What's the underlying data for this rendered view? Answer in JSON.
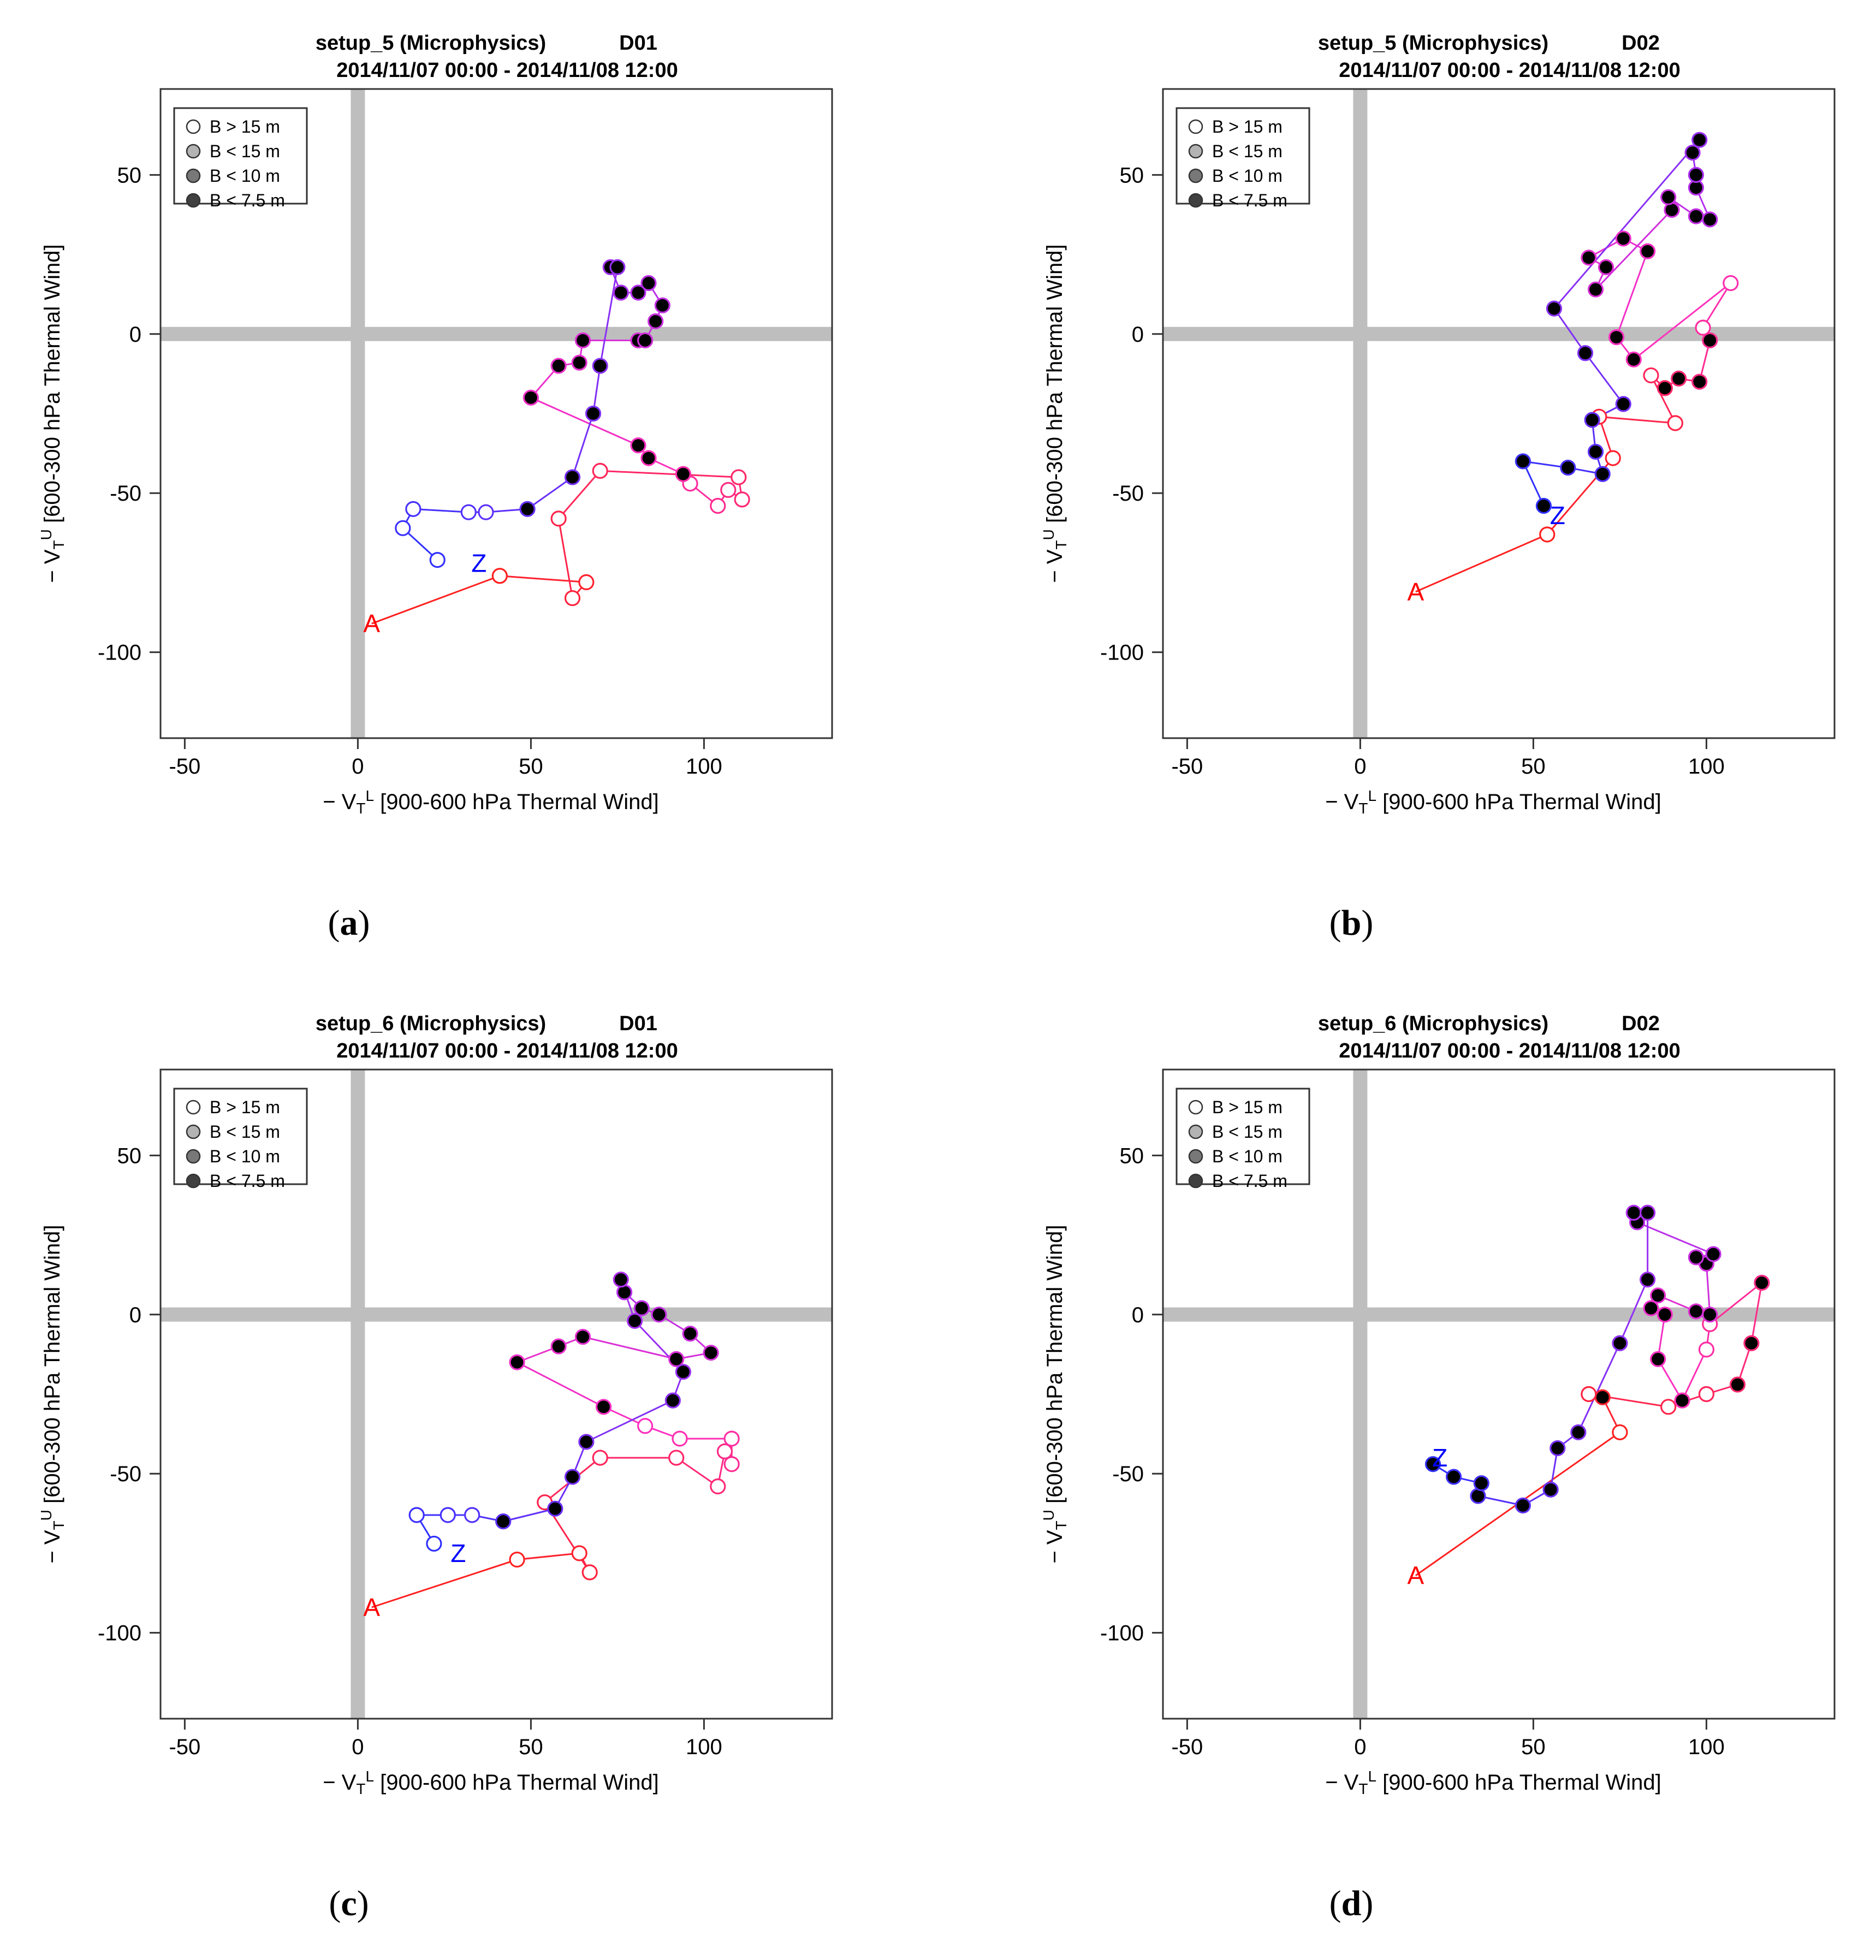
{
  "figure": {
    "legend": {
      "items": [
        {
          "label": "B > 15 m",
          "fill": "#ffffff"
        },
        {
          "label": "B < 15 m",
          "fill": "#b3b3b3"
        },
        {
          "label": "B < 10 m",
          "fill": "#787878"
        },
        {
          "label": "B < 7.5 m",
          "fill": "#404040"
        }
      ]
    },
    "xlabel_prefix": "− V",
    "xlabel_sub": "T",
    "xlabel_sup": "L",
    "xlabel_rest": " [900-600 hPa Thermal Wind]",
    "ylabel_prefix": "− V",
    "ylabel_sub": "T",
    "ylabel_sup": "U",
    "ylabel_rest": " [600-300 hPa Thermal Wind]",
    "colors": {
      "start": "#ff0000",
      "end": "#0000ff",
      "axis_band": "#bebebe",
      "frame": "#333333"
    }
  },
  "chart_data": [
    {
      "type": "scatter",
      "panel_label": "(a)",
      "title_left": "setup_5 (Microphysics)",
      "title_right": "D01",
      "subtitle": "2014/11/07 00:00 - 2014/11/08 12:00",
      "xlim": [
        -57,
        137
      ],
      "ylim": [
        -127,
        77
      ],
      "x_ticks": [
        -50,
        0,
        50,
        100
      ],
      "y_ticks": [
        50,
        0,
        -50,
        -100
      ],
      "start_label": "A",
      "end_label": "Z",
      "start_point": [
        4,
        -91
      ],
      "end_point": [
        35,
        -72
      ],
      "points": [
        {
          "x": 41,
          "y": -76,
          "b": 0
        },
        {
          "x": 66,
          "y": -78,
          "b": 0
        },
        {
          "x": 62,
          "y": -83,
          "b": 0
        },
        {
          "x": 58,
          "y": -58,
          "b": 0
        },
        {
          "x": 70,
          "y": -43,
          "b": 0
        },
        {
          "x": 110,
          "y": -45,
          "b": 0
        },
        {
          "x": 111,
          "y": -52,
          "b": 0
        },
        {
          "x": 107,
          "y": -49,
          "b": 0
        },
        {
          "x": 104,
          "y": -54,
          "b": 0
        },
        {
          "x": 96,
          "y": -47,
          "b": 0
        },
        {
          "x": 94,
          "y": -44,
          "b": 1
        },
        {
          "x": 84,
          "y": -39,
          "b": 1
        },
        {
          "x": 81,
          "y": -35,
          "b": 1
        },
        {
          "x": 50,
          "y": -20,
          "b": 1
        },
        {
          "x": 58,
          "y": -10,
          "b": 3
        },
        {
          "x": 64,
          "y": -9,
          "b": 3
        },
        {
          "x": 65,
          "y": -2,
          "b": 3
        },
        {
          "x": 81,
          "y": -2,
          "b": 3
        },
        {
          "x": 83,
          "y": -2,
          "b": 3
        },
        {
          "x": 86,
          "y": 4,
          "b": 3
        },
        {
          "x": 88,
          "y": 9,
          "b": 3
        },
        {
          "x": 84,
          "y": 16,
          "b": 3
        },
        {
          "x": 81,
          "y": 13,
          "b": 3
        },
        {
          "x": 76,
          "y": 13,
          "b": 3
        },
        {
          "x": 73,
          "y": 21,
          "b": 3
        },
        {
          "x": 75,
          "y": 21,
          "b": 3
        },
        {
          "x": 70,
          "y": -10,
          "b": 3
        },
        {
          "x": 68,
          "y": -25,
          "b": 2
        },
        {
          "x": 62,
          "y": -45,
          "b": 1
        },
        {
          "x": 49,
          "y": -55,
          "b": 1
        },
        {
          "x": 37,
          "y": -56,
          "b": 0
        },
        {
          "x": 32,
          "y": -56,
          "b": 0
        },
        {
          "x": 16,
          "y": -55,
          "b": 0
        },
        {
          "x": 13,
          "y": -61,
          "b": 0
        },
        {
          "x": 23,
          "y": -71,
          "b": 0
        }
      ]
    },
    {
      "type": "scatter",
      "panel_label": "(b)",
      "title_left": "setup_5 (Microphysics)",
      "title_right": "D02",
      "subtitle": "2014/11/07 00:00 - 2014/11/08 12:00",
      "xlim": [
        -57,
        137
      ],
      "ylim": [
        -127,
        77
      ],
      "x_ticks": [
        -50,
        0,
        50,
        100
      ],
      "y_ticks": [
        50,
        0,
        -50,
        -100
      ],
      "start_label": "A",
      "end_label": "Z",
      "start_point": [
        16,
        -81
      ],
      "end_point": [
        57,
        -57
      ],
      "points": [
        {
          "x": 54,
          "y": -63,
          "b": 0
        },
        {
          "x": 73,
          "y": -39,
          "b": 0
        },
        {
          "x": 69,
          "y": -26,
          "b": 0
        },
        {
          "x": 91,
          "y": -28,
          "b": 0
        },
        {
          "x": 84,
          "y": -13,
          "b": 0
        },
        {
          "x": 88,
          "y": -17,
          "b": 1
        },
        {
          "x": 92,
          "y": -14,
          "b": 1
        },
        {
          "x": 98,
          "y": -15,
          "b": 1
        },
        {
          "x": 101,
          "y": -2,
          "b": 1
        },
        {
          "x": 99,
          "y": 2,
          "b": 0
        },
        {
          "x": 107,
          "y": 16,
          "b": 0
        },
        {
          "x": 79,
          "y": -8,
          "b": 1
        },
        {
          "x": 74,
          "y": -1,
          "b": 1
        },
        {
          "x": 83,
          "y": 26,
          "b": 3
        },
        {
          "x": 76,
          "y": 30,
          "b": 3
        },
        {
          "x": 66,
          "y": 24,
          "b": 3
        },
        {
          "x": 71,
          "y": 21,
          "b": 3
        },
        {
          "x": 68,
          "y": 14,
          "b": 3
        },
        {
          "x": 90,
          "y": 39,
          "b": 3
        },
        {
          "x": 89,
          "y": 43,
          "b": 3
        },
        {
          "x": 97,
          "y": 37,
          "b": 3
        },
        {
          "x": 101,
          "y": 36,
          "b": 3
        },
        {
          "x": 97,
          "y": 46,
          "b": 3
        },
        {
          "x": 97,
          "y": 50,
          "b": 3
        },
        {
          "x": 96,
          "y": 57,
          "b": 3
        },
        {
          "x": 98,
          "y": 61,
          "b": 3
        },
        {
          "x": 56,
          "y": 8,
          "b": 3
        },
        {
          "x": 65,
          "y": -6,
          "b": 3
        },
        {
          "x": 76,
          "y": -22,
          "b": 3
        },
        {
          "x": 67,
          "y": -27,
          "b": 2
        },
        {
          "x": 68,
          "y": -37,
          "b": 2
        },
        {
          "x": 70,
          "y": -44,
          "b": 2
        },
        {
          "x": 60,
          "y": -42,
          "b": 2
        },
        {
          "x": 47,
          "y": -40,
          "b": 2
        },
        {
          "x": 53,
          "y": -54,
          "b": 2
        }
      ]
    },
    {
      "type": "scatter",
      "panel_label": "(c)",
      "title_left": "setup_6 (Microphysics)",
      "title_right": "D01",
      "subtitle": "2014/11/07 00:00 - 2014/11/08 12:00",
      "xlim": [
        -57,
        137
      ],
      "ylim": [
        -127,
        77
      ],
      "x_ticks": [
        -50,
        0,
        50,
        100
      ],
      "y_ticks": [
        50,
        0,
        -50,
        -100
      ],
      "start_label": "A",
      "end_label": "Z",
      "start_point": [
        4,
        -92
      ],
      "end_point": [
        29,
        -75
      ],
      "points": [
        {
          "x": 46,
          "y": -77,
          "b": 0
        },
        {
          "x": 64,
          "y": -75,
          "b": 0
        },
        {
          "x": 67,
          "y": -81,
          "b": 0
        },
        {
          "x": 54,
          "y": -59,
          "b": 0
        },
        {
          "x": 70,
          "y": -45,
          "b": 0
        },
        {
          "x": 92,
          "y": -45,
          "b": 0
        },
        {
          "x": 104,
          "y": -54,
          "b": 0
        },
        {
          "x": 106,
          "y": -43,
          "b": 0
        },
        {
          "x": 108,
          "y": -47,
          "b": 0
        },
        {
          "x": 108,
          "y": -39,
          "b": 0
        },
        {
          "x": 93,
          "y": -39,
          "b": 0
        },
        {
          "x": 83,
          "y": -35,
          "b": 0
        },
        {
          "x": 71,
          "y": -29,
          "b": 1
        },
        {
          "x": 46,
          "y": -15,
          "b": 1
        },
        {
          "x": 58,
          "y": -10,
          "b": 2
        },
        {
          "x": 65,
          "y": -7,
          "b": 3
        },
        {
          "x": 92,
          "y": -14,
          "b": 3
        },
        {
          "x": 102,
          "y": -12,
          "b": 3
        },
        {
          "x": 96,
          "y": -6,
          "b": 3
        },
        {
          "x": 87,
          "y": 0,
          "b": 3
        },
        {
          "x": 82,
          "y": 2,
          "b": 3
        },
        {
          "x": 77,
          "y": 7,
          "b": 3
        },
        {
          "x": 76,
          "y": 11,
          "b": 3
        },
        {
          "x": 80,
          "y": -2,
          "b": 3
        },
        {
          "x": 94,
          "y": -18,
          "b": 3
        },
        {
          "x": 91,
          "y": -27,
          "b": 3
        },
        {
          "x": 66,
          "y": -40,
          "b": 3
        },
        {
          "x": 62,
          "y": -51,
          "b": 3
        },
        {
          "x": 57,
          "y": -61,
          "b": 2
        },
        {
          "x": 42,
          "y": -65,
          "b": 2
        },
        {
          "x": 33,
          "y": -63,
          "b": 0
        },
        {
          "x": 26,
          "y": -63,
          "b": 0
        },
        {
          "x": 17,
          "y": -63,
          "b": 0
        },
        {
          "x": 22,
          "y": -72,
          "b": 0
        }
      ]
    },
    {
      "type": "scatter",
      "panel_label": "(d)",
      "title_left": "setup_6 (Microphysics)",
      "title_right": "D02",
      "subtitle": "2014/11/07 00:00 - 2014/11/08 12:00",
      "xlim": [
        -57,
        137
      ],
      "ylim": [
        -127,
        77
      ],
      "x_ticks": [
        -50,
        0,
        50,
        100
      ],
      "y_ticks": [
        50,
        0,
        -50,
        -100
      ],
      "start_label": "A",
      "end_label": "Z",
      "start_point": [
        16,
        -82
      ],
      "end_point": [
        23,
        -45
      ],
      "points": [
        {
          "x": 75,
          "y": -37,
          "b": 0
        },
        {
          "x": 70,
          "y": -26,
          "b": 3
        },
        {
          "x": 66,
          "y": -25,
          "b": 0
        },
        {
          "x": 89,
          "y": -29,
          "b": 0
        },
        {
          "x": 100,
          "y": -25,
          "b": 0
        },
        {
          "x": 109,
          "y": -22,
          "b": 1
        },
        {
          "x": 113,
          "y": -9,
          "b": 1
        },
        {
          "x": 116,
          "y": 10,
          "b": 1
        },
        {
          "x": 101,
          "y": -3,
          "b": 0
        },
        {
          "x": 100,
          "y": -11,
          "b": 0
        },
        {
          "x": 93,
          "y": -27,
          "b": 1
        },
        {
          "x": 86,
          "y": -14,
          "b": 1
        },
        {
          "x": 88,
          "y": 0,
          "b": 1
        },
        {
          "x": 84,
          "y": 2,
          "b": 3
        },
        {
          "x": 86,
          "y": 6,
          "b": 3
        },
        {
          "x": 97,
          "y": 1,
          "b": 3
        },
        {
          "x": 101,
          "y": 0,
          "b": 3
        },
        {
          "x": 100,
          "y": 16,
          "b": 3
        },
        {
          "x": 97,
          "y": 18,
          "b": 3
        },
        {
          "x": 102,
          "y": 19,
          "b": 3
        },
        {
          "x": 80,
          "y": 29,
          "b": 3
        },
        {
          "x": 79,
          "y": 32,
          "b": 3
        },
        {
          "x": 83,
          "y": 32,
          "b": 3
        },
        {
          "x": 83,
          "y": 11,
          "b": 3
        },
        {
          "x": 75,
          "y": -9,
          "b": 3
        },
        {
          "x": 63,
          "y": -37,
          "b": 3
        },
        {
          "x": 57,
          "y": -42,
          "b": 2
        },
        {
          "x": 55,
          "y": -55,
          "b": 2
        },
        {
          "x": 47,
          "y": -60,
          "b": 2
        },
        {
          "x": 34,
          "y": -57,
          "b": 2
        },
        {
          "x": 35,
          "y": -53,
          "b": 1
        },
        {
          "x": 27,
          "y": -51,
          "b": 1
        },
        {
          "x": 21,
          "y": -47,
          "b": 2
        }
      ]
    }
  ]
}
